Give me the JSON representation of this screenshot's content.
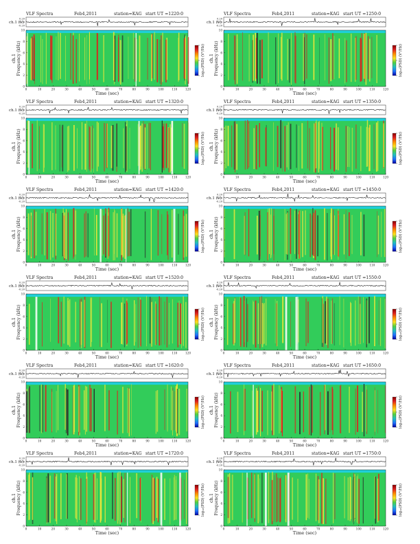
{
  "figure": {
    "colors": {
      "ink": "#222222",
      "background_cyan": "#1fd0d8",
      "band_green": "#32cc5a",
      "yellow": "#e8e63a",
      "red": "#d8281f",
      "dark": "#2a2a2a",
      "colorbar": [
        "#8b0000",
        "#e02020",
        "#ff8c00",
        "#ffe020",
        "#50d040",
        "#20c0c0",
        "#2070ff",
        "#0000a0"
      ]
    },
    "panels": [
      {
        "header": {
          "title": "VLF Spectra",
          "date": "Feb4,2011",
          "station": "station=KAG",
          "start": "start  UT  =1220:0"
        }
      },
      {
        "header": {
          "title": "VLF Spectra",
          "date": "Feb4,2011",
          "station": "station=KAG",
          "start": "start  UT  =1250:0"
        }
      },
      {
        "header": {
          "title": "VLF Spectra",
          "date": "Feb4,2011",
          "station": "station=KAG",
          "start": "start  UT  =1320:0"
        }
      },
      {
        "header": {
          "title": "VLF Spectra",
          "date": "Feb4,2011",
          "station": "station=KAG",
          "start": "start  UT  =1350:0"
        }
      },
      {
        "header": {
          "title": "VLF Spectra",
          "date": "Feb4,2011",
          "station": "station=KAG",
          "start": "start  UT  =1420:0"
        }
      },
      {
        "header": {
          "title": "VLF Spectra",
          "date": "Feb4,2011",
          "station": "station=KAG",
          "start": "start  UT  =1450:0"
        }
      },
      {
        "header": {
          "title": "VLF Spectra",
          "date": "Feb4,2011",
          "station": "station=KAG",
          "start": "start  UT  =1520:0"
        }
      },
      {
        "header": {
          "title": "VLF Spectra",
          "date": "Feb4,2011",
          "station": "station=KAG",
          "start": "start  UT  =1550:0"
        }
      },
      {
        "header": {
          "title": "VLF Spectra",
          "date": "Feb4,2011",
          "station": "station=KAG",
          "start": "start  UT  =1620:0"
        }
      },
      {
        "header": {
          "title": "VLF Spectra",
          "date": "Feb4,2011",
          "station": "station=KAG",
          "start": "start  UT  =1650:0"
        }
      },
      {
        "header": {
          "title": "VLF Spectra",
          "date": "Feb4,2011",
          "station": "station=KAG",
          "start": "start  UT  =1720:0"
        }
      },
      {
        "header": {
          "title": "VLF Spectra",
          "date": "Feb4,2011",
          "station": "station=KAG",
          "start": "start  UT  =1750:0"
        }
      }
    ]
  },
  "chart_data": {
    "type": "heatmap",
    "panel_count": 12,
    "layout": "6 rows x 2 columns",
    "waveform": {
      "ylabel": "ch.1 (V)",
      "ylim": [
        -0.2,
        0.2
      ],
      "yticks": [
        "0.20",
        "0.00",
        "-0.20"
      ]
    },
    "spectrogram": {
      "ylabel_main": "Frequency (kHz)",
      "ylabel_channel": "ch.1",
      "ylim_khz": [
        0,
        10
      ],
      "yticks": [
        0,
        2,
        4,
        6,
        8,
        10
      ],
      "xlabel": "Time (sec)",
      "xlim_sec": [
        0,
        120
      ],
      "xticks": [
        0,
        10,
        20,
        30,
        40,
        50,
        60,
        70,
        80,
        90,
        100,
        110,
        120
      ]
    },
    "colorbar": {
      "label": "log₁₀(PSD) (V²/Hz)",
      "gradient": [
        "dark red",
        "red",
        "orange",
        "yellow",
        "green",
        "cyan",
        "blue",
        "dark blue"
      ],
      "tick_count": 3
    }
  }
}
